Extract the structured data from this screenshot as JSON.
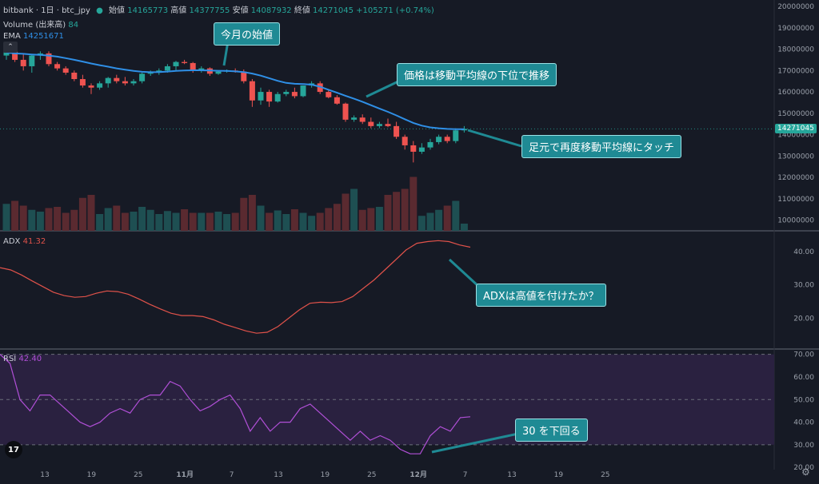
{
  "header": {
    "symbol": "bitbank · 1日 · btc_jpy",
    "open_label": "始値",
    "open_value": "14165773",
    "high_label": "高値",
    "high_value": "14377755",
    "low_label": "安値",
    "low_value": "14087932",
    "close_label": "終値",
    "close_value": "14271045",
    "change": "+105271 (+0.74%)",
    "volume_label": "Volume (出来高)",
    "volume_value": "84",
    "ema_label": "EMA",
    "ema_value": "14251671",
    "adx_label": "ADX",
    "adx_value": "41.32",
    "rsi_label": "RSI",
    "rsi_value": "42.40"
  },
  "annotations": {
    "a1": "今月の始値",
    "a2": "価格は移動平均線の下位で推移",
    "a3": "足元で再度移動平均線にタッチ",
    "a4": "ADXは高値を付けたか？",
    "a5": "30 を下回る"
  },
  "price_tag": "14271045",
  "icons": {
    "logo": "tradingview-logo-icon",
    "collapse": "chevron-up-icon",
    "settings": "gear-icon"
  },
  "colors": {
    "up": "#26a69a",
    "down": "#ef5350",
    "ema": "#2f8fe6",
    "adx": "#e0524a",
    "rsi": "#b04fd6",
    "bg": "#161a25"
  },
  "chart_data": [
    {
      "type": "candlestick",
      "title": "bitbank · 1日 · btc_jpy",
      "x_ticks": [
        "13",
        "19",
        "25",
        "11月",
        "7",
        "13",
        "19",
        "25",
        "12月",
        "7",
        "13",
        "19",
        "25"
      ],
      "y_ticks": [
        "20000000",
        "19000000",
        "18000000",
        "17000000",
        "16000000",
        "15000000",
        "14000000",
        "13000000",
        "12000000",
        "11000000",
        "10000000"
      ],
      "ylim": [
        9500000,
        20300000
      ],
      "candles": [
        [
          17700000,
          18100000,
          17500000,
          17900000
        ],
        [
          17900000,
          18200000,
          17400000,
          17500000
        ],
        [
          17500000,
          17800000,
          17000000,
          17200000
        ],
        [
          17200000,
          17750000,
          16900000,
          17700000
        ],
        [
          17700000,
          17900000,
          17500000,
          17800000
        ],
        [
          17800000,
          17900000,
          17200000,
          17300000
        ],
        [
          17300000,
          17400000,
          17000000,
          17100000
        ],
        [
          17100000,
          17200000,
          16800000,
          16900000
        ],
        [
          16900000,
          17000000,
          16500000,
          16600000
        ],
        [
          16600000,
          16800000,
          16200000,
          16300000
        ],
        [
          16300000,
          16400000,
          15900000,
          16200000
        ],
        [
          16200000,
          16500000,
          16100000,
          16400000
        ],
        [
          16400000,
          16700000,
          16200000,
          16650000
        ],
        [
          16650000,
          16800000,
          16400000,
          16500000
        ],
        [
          16500000,
          16700000,
          16300000,
          16400000
        ],
        [
          16400000,
          16600000,
          16300000,
          16500000
        ],
        [
          16500000,
          16900000,
          16400000,
          16850000
        ],
        [
          16850000,
          17000000,
          16750000,
          16900000
        ],
        [
          16900000,
          17100000,
          16800000,
          17000000
        ],
        [
          17000000,
          17300000,
          16900000,
          17200000
        ],
        [
          17200000,
          17450000,
          17000000,
          17400000
        ],
        [
          17400000,
          17500000,
          17300000,
          17350000
        ],
        [
          17350000,
          17400000,
          16900000,
          17000000
        ],
        [
          17000000,
          17200000,
          16900000,
          17100000
        ],
        [
          17100000,
          17150000,
          16750000,
          16850000
        ],
        [
          16850000,
          17000000,
          16800000,
          16950000
        ],
        [
          16950000,
          17050000,
          16900000,
          17000000
        ],
        [
          17000000,
          17100000,
          16900000,
          16950000
        ],
        [
          16950000,
          17050000,
          16400000,
          16500000
        ],
        [
          16500000,
          16600000,
          15300000,
          15600000
        ],
        [
          15600000,
          16200000,
          15400000,
          16000000
        ],
        [
          16000000,
          16100000,
          15300000,
          15550000
        ],
        [
          15550000,
          16000000,
          15500000,
          15900000
        ],
        [
          15900000,
          16100000,
          15800000,
          16000000
        ],
        [
          16000000,
          16200000,
          15700000,
          15800000
        ],
        [
          15800000,
          16300000,
          15750000,
          16300000
        ],
        [
          16300000,
          16500000,
          16200000,
          16400000
        ],
        [
          16400000,
          16500000,
          15900000,
          16000000
        ],
        [
          16000000,
          16100000,
          15700000,
          15750000
        ],
        [
          15750000,
          15850000,
          15400000,
          15450000
        ],
        [
          15450000,
          15500000,
          14600000,
          14700000
        ],
        [
          14700000,
          14900000,
          14600000,
          14800000
        ],
        [
          14800000,
          14950000,
          14500000,
          14600000
        ],
        [
          14600000,
          14800000,
          14300000,
          14400000
        ],
        [
          14400000,
          14600000,
          14300000,
          14500000
        ],
        [
          14500000,
          14750000,
          14350000,
          14400000
        ],
        [
          14400000,
          14600000,
          13800000,
          13900000
        ],
        [
          13900000,
          14000000,
          13300000,
          13500000
        ],
        [
          13500000,
          13700000,
          12700000,
          13200000
        ],
        [
          13200000,
          13600000,
          13100000,
          13400000
        ],
        [
          13400000,
          13800000,
          13300000,
          13650000
        ],
        [
          13650000,
          14000000,
          13550000,
          13900000
        ],
        [
          13900000,
          14000000,
          13600000,
          13700000
        ],
        [
          13700000,
          14300000,
          13600000,
          14200000
        ],
        [
          14200000,
          14400000,
          14100000,
          14271045
        ]
      ],
      "ema": [
        17850000,
        17800000,
        17780000,
        17750000,
        17730000,
        17700000,
        17650000,
        17580000,
        17500000,
        17420000,
        17330000,
        17250000,
        17180000,
        17100000,
        17040000,
        16980000,
        16940000,
        16920000,
        16930000,
        16950000,
        16980000,
        17000000,
        17010000,
        17010000,
        17000000,
        16990000,
        16980000,
        16960000,
        16930000,
        16860000,
        16760000,
        16640000,
        16520000,
        16420000,
        16380000,
        16370000,
        16340000,
        16240000,
        16100000,
        15960000,
        15820000,
        15680000,
        15540000,
        15380000,
        15220000,
        15070000,
        14900000,
        14720000,
        14550000,
        14420000,
        14340000,
        14300000,
        14270000,
        14255000,
        14251671
      ],
      "volume": [
        0.45,
        0.5,
        0.42,
        0.35,
        0.32,
        0.38,
        0.4,
        0.3,
        0.35,
        0.55,
        0.6,
        0.28,
        0.38,
        0.42,
        0.3,
        0.32,
        0.4,
        0.35,
        0.28,
        0.33,
        0.3,
        0.36,
        0.3,
        0.3,
        0.3,
        0.32,
        0.28,
        0.3,
        0.55,
        0.6,
        0.42,
        0.3,
        0.34,
        0.28,
        0.36,
        0.3,
        0.25,
        0.3,
        0.38,
        0.45,
        0.62,
        0.7,
        0.35,
        0.38,
        0.4,
        0.6,
        0.65,
        0.7,
        0.9,
        0.25,
        0.3,
        0.35,
        0.42,
        0.5,
        0.12
      ]
    },
    {
      "type": "line",
      "series": [
        {
          "name": "ADX",
          "values": [
            35.2,
            34.5,
            33.0,
            31.2,
            29.5,
            27.8,
            26.8,
            26.3,
            26.5,
            27.5,
            28.2,
            28.0,
            27.2,
            25.8,
            24.2,
            22.8,
            21.5,
            20.8,
            20.8,
            20.5,
            19.5,
            18.2,
            17.2,
            16.2,
            15.5,
            15.8,
            17.5,
            20.0,
            22.5,
            24.5,
            24.8,
            24.7,
            25.0,
            26.5,
            29.0,
            31.5,
            34.5,
            37.5,
            40.5,
            42.5,
            43.0,
            43.3,
            43.0,
            42.0,
            41.32
          ]
        }
      ],
      "y_ticks": [
        "40.00",
        "30.00",
        "20.00"
      ],
      "ylim": [
        11,
        46
      ]
    },
    {
      "type": "line",
      "series": [
        {
          "name": "RSI",
          "values": [
            70,
            66,
            50,
            45,
            52,
            52,
            48,
            44,
            40,
            38,
            40,
            44,
            46,
            44,
            50,
            52,
            52,
            58,
            56,
            50,
            45,
            47,
            50,
            52,
            46,
            36,
            42,
            36,
            40,
            40,
            46,
            48,
            44,
            40,
            36,
            32,
            36,
            32,
            34,
            32,
            28,
            26,
            26,
            34,
            38,
            36,
            42,
            42.4
          ]
        }
      ],
      "y_ticks": [
        "70.00",
        "60.00",
        "50.00",
        "40.00",
        "30.00",
        "20.00"
      ],
      "ylim": [
        19,
        72
      ],
      "overbought": 70,
      "midline": 50,
      "oversold": 30
    }
  ]
}
